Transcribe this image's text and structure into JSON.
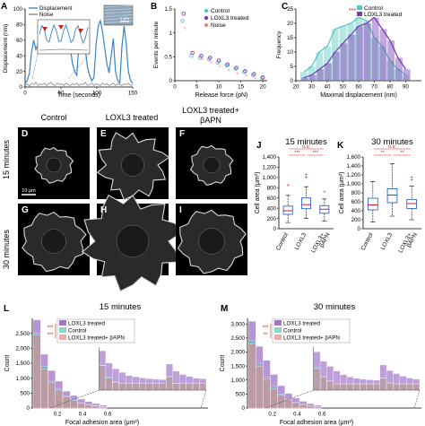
{
  "panel_letters": [
    "A",
    "B",
    "C",
    "D",
    "E",
    "F",
    "G",
    "H",
    "I",
    "J",
    "K",
    "L",
    "M"
  ],
  "colors": {
    "displacement": "#3b82c4",
    "noise": "#8a8a8a",
    "control": "#58c8c0",
    "loxl3": "#7b3fb5",
    "bapn": "#e58a8a",
    "sig": "#cc2222",
    "cell": "#d8d8d8"
  },
  "column_headers": {
    "control": "Control",
    "loxl3": "LOXL3 treated",
    "bapn_line1": "LOXL3 treated+",
    "bapn_line2": "βAPN"
  },
  "row_labels": {
    "row1": "15 minutes",
    "row2": "30 minutes"
  },
  "scale_bar": "10 μm",
  "inset_scale": "1 μm",
  "chart_data": [
    {
      "panel": "A",
      "type": "line",
      "xlabel": "Time (seconds)",
      "ylabel": "Displacement (nm)",
      "xlim": [
        0,
        150
      ],
      "ylim": [
        0,
        100
      ],
      "xticks": [
        0,
        50,
        100,
        150
      ],
      "yticks": [
        0,
        20,
        40,
        60,
        80,
        100
      ],
      "series": [
        {
          "name": "Displacement",
          "x": [
            0,
            3,
            6,
            9,
            12,
            15,
            18,
            21,
            24,
            27,
            30,
            33,
            36,
            39,
            42,
            45,
            48,
            51,
            54,
            57,
            60,
            63,
            66,
            69,
            72,
            75,
            78,
            81,
            84,
            87,
            90,
            93,
            96,
            99,
            102,
            105,
            108,
            111,
            114,
            117,
            120,
            123,
            126,
            129,
            132,
            135,
            138,
            141,
            144,
            147,
            150
          ],
          "y": [
            5,
            8,
            18,
            45,
            60,
            48,
            55,
            70,
            58,
            65,
            50,
            62,
            72,
            48,
            60,
            55,
            78,
            52,
            60,
            45,
            72,
            50,
            30,
            20,
            15,
            55,
            75,
            60,
            48,
            25,
            15,
            8,
            12,
            55,
            78,
            85,
            70,
            50,
            30,
            18,
            40,
            62,
            20,
            8,
            5,
            52,
            78,
            55,
            20,
            8,
            5
          ]
        },
        {
          "name": "Noise",
          "x": [
            0,
            3,
            6,
            9,
            12,
            15,
            18,
            21,
            24,
            27,
            30,
            33,
            36,
            39,
            42,
            45,
            48,
            51,
            54,
            57,
            60,
            63,
            66,
            69,
            72,
            75,
            78,
            81,
            84,
            87,
            90,
            93,
            96,
            99,
            102,
            105,
            108,
            111,
            114,
            117,
            120,
            123,
            126,
            129,
            132,
            135,
            138,
            141,
            144,
            147,
            150
          ],
          "y": [
            2,
            4,
            1,
            5,
            3,
            6,
            2,
            4,
            3,
            5,
            2,
            4,
            6,
            3,
            2,
            5,
            3,
            4,
            2,
            5,
            3,
            2,
            4,
            3,
            5,
            2,
            4,
            3,
            6,
            2,
            3,
            5,
            2,
            4,
            3,
            2,
            5,
            3,
            4,
            2,
            3,
            5,
            2,
            4,
            3,
            2,
            4,
            3,
            5,
            2,
            3
          ]
        }
      ]
    },
    {
      "panel": "B",
      "type": "scatter",
      "xlabel": "Release force (pN)",
      "ylabel": "Events per minute",
      "xlim": [
        0,
        21
      ],
      "ylim": [
        0,
        1.5
      ],
      "xticks": [
        0,
        5,
        10,
        15,
        20
      ],
      "yticks": [
        0,
        0.5,
        1,
        1.5
      ],
      "series": [
        {
          "name": "Control",
          "x": [
            2,
            4,
            6,
            8,
            10,
            12,
            14,
            16,
            18,
            20
          ],
          "y": [
            1.25,
            0.52,
            0.48,
            0.45,
            0.38,
            0.32,
            0.25,
            0.18,
            0.12,
            0.05
          ]
        },
        {
          "name": "LOXL3 treated",
          "x": [
            2,
            4,
            6,
            8,
            10,
            12,
            14,
            16,
            18,
            20
          ],
          "y": [
            1.4,
            0.58,
            0.52,
            0.48,
            0.42,
            0.34,
            0.27,
            0.2,
            0.14,
            0.07
          ]
        },
        {
          "name": "Noise",
          "x": [
            2,
            4,
            6,
            8,
            10,
            12,
            14,
            16,
            18,
            20
          ],
          "y": [
            1.1,
            0.6,
            0.45,
            0.38,
            0.3,
            0.22,
            0.15,
            0.1,
            0.06,
            0.03
          ]
        }
      ]
    },
    {
      "panel": "C",
      "type": "bar",
      "xlabel": "Maximal displacement (nm)",
      "ylabel": "Frequency",
      "xlim": [
        20,
        100
      ],
      "ylim": [
        0,
        25
      ],
      "xticks": [
        20,
        30,
        40,
        50,
        60,
        70,
        80,
        90
      ],
      "yticks": [
        0,
        5,
        10,
        15,
        20,
        25
      ],
      "significance": "***",
      "series": [
        {
          "name": "Control",
          "x": [
            25,
            30,
            35,
            40,
            45,
            50,
            55,
            60,
            65,
            70,
            75,
            80,
            85,
            90
          ],
          "values": [
            3,
            5,
            10,
            12,
            18,
            19,
            20,
            22,
            21,
            15,
            12,
            7,
            4,
            2
          ]
        },
        {
          "name": "LOXL3 treated",
          "x": [
            25,
            30,
            35,
            40,
            45,
            50,
            55,
            60,
            65,
            70,
            75,
            80,
            85,
            90
          ],
          "values": [
            1,
            2,
            4,
            6,
            10,
            13,
            16,
            19,
            20,
            22,
            18,
            14,
            8,
            4
          ]
        }
      ]
    },
    {
      "panel": "J",
      "type": "box",
      "title": "15 minutes",
      "ylabel": "Cell area (μm²)",
      "ylim": [
        0,
        1400
      ],
      "yticks": [
        0,
        200,
        400,
        600,
        800,
        1000,
        1200,
        1400
      ],
      "categories": [
        "Control",
        "LOXL3",
        "LOXL3+ βAPN"
      ],
      "boxes": [
        {
          "min": 120,
          "q1": 280,
          "median": 350,
          "q3": 440,
          "max": 650,
          "outliers": [
            850
          ]
        },
        {
          "min": 200,
          "q1": 390,
          "median": 470,
          "q3": 600,
          "max": 820,
          "outliers": [
            1000,
            1050
          ]
        },
        {
          "min": 150,
          "q1": 300,
          "median": 380,
          "q3": 450,
          "max": 580,
          "outliers": [
            720
          ]
        }
      ],
      "significance": [
        "***",
        "***",
        "n.s."
      ]
    },
    {
      "panel": "K",
      "type": "box",
      "title": "30 minutes",
      "ylabel": "Cell area (μm²)",
      "ylim": [
        0,
        1600
      ],
      "yticks": [
        0,
        200,
        400,
        600,
        800,
        1000,
        1200,
        1400,
        1600
      ],
      "categories": [
        "Control",
        "LOXL3",
        "LOXL3+ βAPN"
      ],
      "boxes": [
        {
          "min": 150,
          "q1": 420,
          "median": 530,
          "q3": 680,
          "max": 1050,
          "outliers": []
        },
        {
          "min": 280,
          "q1": 580,
          "median": 750,
          "q3": 890,
          "max": 1450,
          "outliers": []
        },
        {
          "min": 200,
          "q1": 450,
          "median": 560,
          "q3": 650,
          "max": 950,
          "outliers": [
            1080,
            1140
          ]
        }
      ],
      "significance": [
        "**",
        "**",
        "n.s."
      ]
    },
    {
      "panel": "L",
      "type": "bar",
      "title": "15 minutes",
      "xlabel": "Focal adhesion area (μm²)",
      "ylabel": "Count",
      "ylim": [
        0,
        3000
      ],
      "yticks": [
        0,
        500,
        1000,
        1500,
        2000,
        2500
      ],
      "xticks": [
        0.2,
        0.4,
        0.6
      ],
      "significance": [
        "***",
        "***"
      ],
      "series": [
        {
          "name": "LOXL3 treated",
          "values": [
            2950,
            1800,
            1250,
            900,
            560,
            420,
            300,
            220,
            150,
            100
          ]
        },
        {
          "name": "Control",
          "values": [
            2500,
            1400,
            900,
            650,
            400,
            280,
            180,
            120,
            80,
            50
          ]
        },
        {
          "name": "LOXL3 treated+ βAPN",
          "values": [
            2450,
            1300,
            850,
            600,
            380,
            250,
            160,
            100,
            70,
            40
          ]
        }
      ]
    },
    {
      "panel": "M",
      "type": "bar",
      "title": "30 minutes",
      "xlabel": "Focal adhesion area (μm²)",
      "ylabel": "Count",
      "ylim": [
        0,
        3200
      ],
      "yticks": [
        0,
        500,
        1000,
        1500,
        2000,
        2500,
        3000
      ],
      "xticks": [
        0.2,
        0.4,
        0.6
      ],
      "significance": [
        "***",
        "**"
      ],
      "series": [
        {
          "name": "LOXL3 treated",
          "values": [
            3100,
            2200,
            1700,
            1200,
            800,
            520,
            360,
            240,
            160,
            100
          ]
        },
        {
          "name": "Control",
          "values": [
            2400,
            1600,
            1100,
            780,
            500,
            320,
            210,
            140,
            90,
            50
          ]
        },
        {
          "name": "LOXL3 treated+ βAPN",
          "values": [
            2300,
            1500,
            1050,
            700,
            460,
            300,
            190,
            120,
            80,
            40
          ]
        }
      ]
    }
  ]
}
